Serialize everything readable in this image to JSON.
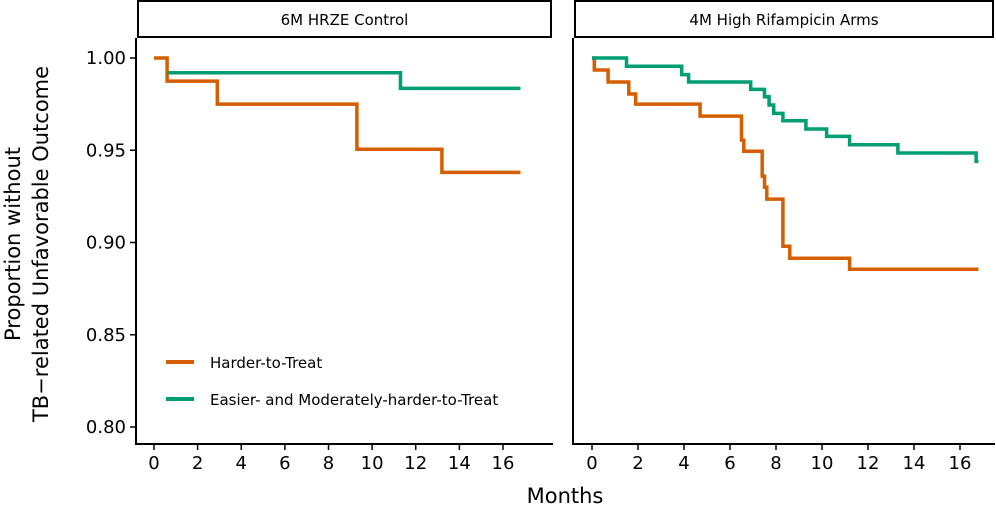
{
  "chart_data": {
    "type": "line",
    "subtype": "step",
    "xlabel": "Months",
    "ylabel_lines": [
      "Proportion without",
      "TB−related Unfavorable Outcome"
    ],
    "xlim": [
      -0.8,
      17.5
    ],
    "ylim": [
      0.79,
      1.008
    ],
    "x_ticks": [
      0,
      2,
      4,
      6,
      8,
      10,
      12,
      14,
      16
    ],
    "x_tick_labels": [
      "0",
      "2",
      "4",
      "6",
      "8",
      "10",
      "12",
      "14",
      "16"
    ],
    "y_ticks": [
      1.0,
      0.95,
      0.9,
      0.85,
      0.8
    ],
    "y_tick_labels": [
      "1.00",
      "0.95",
      "0.90",
      "0.85",
      "0.80"
    ],
    "grid": false,
    "legend": [
      {
        "label": "Harder-to-Treat",
        "color": "#D55E00"
      },
      {
        "label": "Easier- and Moderately-harder-to-Treat",
        "color": "#009E73"
      }
    ],
    "panels": [
      {
        "title": "6M HRZE Control",
        "series": [
          {
            "name": "Harder-to-Treat",
            "color": "#D55E00",
            "points": [
              [
                0,
                1.0
              ],
              [
                0.6,
                0.9875
              ],
              [
                2.9,
                0.975
              ],
              [
                9.3,
                0.9505
              ],
              [
                13.2,
                0.938
              ],
              [
                16.8,
                0.938
              ]
            ]
          },
          {
            "name": "Easier- and Moderately-harder-to-Treat",
            "color": "#009E73",
            "points": [
              [
                0.6,
                0.992
              ],
              [
                11.3,
                0.9835
              ],
              [
                16.8,
                0.9835
              ]
            ]
          }
        ]
      },
      {
        "title": "4M High Rifampicin Arms",
        "series": [
          {
            "name": "Harder-to-Treat",
            "color": "#D55E00",
            "points": [
              [
                0,
                1.0
              ],
              [
                0.1,
                0.9935
              ],
              [
                0.7,
                0.987
              ],
              [
                1.6,
                0.9805
              ],
              [
                1.9,
                0.975
              ],
              [
                4.7,
                0.9685
              ],
              [
                6.5,
                0.9555
              ],
              [
                6.6,
                0.9495
              ],
              [
                7.4,
                0.936
              ],
              [
                7.5,
                0.93
              ],
              [
                7.6,
                0.9235
              ],
              [
                8.3,
                0.898
              ],
              [
                8.6,
                0.8915
              ],
              [
                11.2,
                0.8855
              ],
              [
                16.8,
                0.8855
              ]
            ]
          },
          {
            "name": "Easier- and Moderately-harder-to-Treat",
            "color": "#009E73",
            "points": [
              [
                0,
                1.0
              ],
              [
                1.5,
                0.9955
              ],
              [
                3.9,
                0.991
              ],
              [
                4.2,
                0.987
              ],
              [
                6.9,
                0.983
              ],
              [
                7.5,
                0.979
              ],
              [
                7.7,
                0.9745
              ],
              [
                7.9,
                0.97
              ],
              [
                8.3,
                0.966
              ],
              [
                9.3,
                0.9615
              ],
              [
                10.2,
                0.9575
              ],
              [
                11.2,
                0.953
              ],
              [
                13.3,
                0.9485
              ],
              [
                16.7,
                0.944
              ],
              [
                16.8,
                0.944
              ]
            ]
          }
        ]
      }
    ]
  }
}
